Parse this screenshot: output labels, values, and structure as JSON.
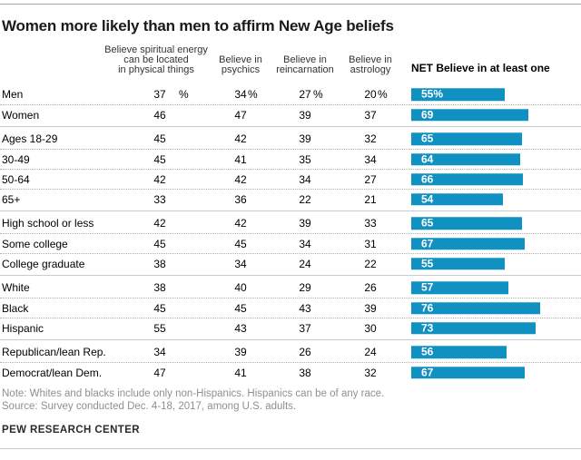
{
  "title": "Women more likely than men to affirm New Age beliefs",
  "columns": [
    {
      "label": "Believe spiritual energy can be located in physical things",
      "lines": [
        "Believe spiritual energy",
        "can be located",
        "in physical things"
      ]
    },
    {
      "label": "Believe in psychics",
      "lines": [
        "Believe in",
        "psychics"
      ]
    },
    {
      "label": "Believe in reincarnation",
      "lines": [
        "Believe in",
        "reincarnation"
      ]
    },
    {
      "label": "Believe in astrology",
      "lines": [
        "Believe in",
        "astrology"
      ]
    },
    {
      "label": "NET Believe in at least one"
    }
  ],
  "groups": [
    {
      "rows": [
        {
          "label": "Men",
          "values": [
            "37",
            "34",
            "27",
            "20"
          ],
          "suffix": "%",
          "net": 55,
          "net_label": "55%"
        },
        {
          "label": "Women",
          "values": [
            "46",
            "47",
            "39",
            "37"
          ],
          "net": 69,
          "net_label": "69"
        }
      ]
    },
    {
      "rows": [
        {
          "label": "Ages 18-29",
          "values": [
            "45",
            "42",
            "39",
            "32"
          ],
          "net": 65,
          "net_label": "65"
        },
        {
          "label": "30-49",
          "values": [
            "45",
            "41",
            "35",
            "34"
          ],
          "net": 64,
          "net_label": "64"
        },
        {
          "label": "50-64",
          "values": [
            "42",
            "42",
            "34",
            "27"
          ],
          "net": 66,
          "net_label": "66"
        },
        {
          "label": "65+",
          "values": [
            "33",
            "36",
            "22",
            "21"
          ],
          "net": 54,
          "net_label": "54"
        }
      ]
    },
    {
      "rows": [
        {
          "label": "High school or less",
          "values": [
            "42",
            "42",
            "39",
            "33"
          ],
          "net": 65,
          "net_label": "65"
        },
        {
          "label": "Some college",
          "values": [
            "45",
            "45",
            "34",
            "31"
          ],
          "net": 67,
          "net_label": "67"
        },
        {
          "label": "College graduate",
          "values": [
            "38",
            "34",
            "24",
            "22"
          ],
          "net": 55,
          "net_label": "55"
        }
      ]
    },
    {
      "rows": [
        {
          "label": "White",
          "values": [
            "38",
            "40",
            "29",
            "26"
          ],
          "net": 57,
          "net_label": "57"
        },
        {
          "label": "Black",
          "values": [
            "45",
            "45",
            "43",
            "39"
          ],
          "net": 76,
          "net_label": "76"
        },
        {
          "label": "Hispanic",
          "values": [
            "55",
            "43",
            "37",
            "30"
          ],
          "net": 73,
          "net_label": "73"
        }
      ]
    },
    {
      "rows": [
        {
          "label": "Republican/lean Rep.",
          "values": [
            "34",
            "39",
            "26",
            "24"
          ],
          "net": 56,
          "net_label": "56"
        },
        {
          "label": "Democrat/lean Dem.",
          "values": [
            "47",
            "41",
            "38",
            "32"
          ],
          "net": 67,
          "net_label": "67"
        }
      ]
    }
  ],
  "notes": {
    "note": "Note: Whites and blacks include only non-Hispanics. Hispanics can be of any race.",
    "source": "Source: Survey conducted Dec. 4-18, 2017, among U.S. adults."
  },
  "footer": "PEW RESEARCH CENTER",
  "colors": {
    "bar": "#1190c2",
    "bar_label": "#ffffff"
  },
  "chart_data": {
    "type": "bar",
    "orientation": "horizontal",
    "title": "Women more likely than men to affirm New Age beliefs",
    "categories": [
      "Men",
      "Women",
      "Ages 18-29",
      "30-49",
      "50-64",
      "65+",
      "High school or less",
      "Some college",
      "College graduate",
      "White",
      "Black",
      "Hispanic",
      "Republican/lean Rep.",
      "Democrat/lean Dem."
    ],
    "series": [
      {
        "name": "Believe spiritual energy can be located in physical things",
        "values": [
          37,
          46,
          45,
          45,
          42,
          33,
          42,
          45,
          38,
          38,
          45,
          55,
          34,
          47
        ]
      },
      {
        "name": "Believe in psychics",
        "values": [
          34,
          47,
          42,
          41,
          42,
          36,
          42,
          45,
          34,
          40,
          45,
          43,
          39,
          41
        ]
      },
      {
        "name": "Believe in reincarnation",
        "values": [
          27,
          39,
          39,
          35,
          34,
          22,
          39,
          34,
          24,
          29,
          43,
          37,
          26,
          38
        ]
      },
      {
        "name": "Believe in astrology",
        "values": [
          20,
          37,
          32,
          34,
          27,
          21,
          33,
          31,
          22,
          26,
          39,
          30,
          24,
          32
        ]
      },
      {
        "name": "NET Believe in at least one",
        "values": [
          55,
          69,
          65,
          64,
          66,
          54,
          65,
          67,
          55,
          57,
          76,
          73,
          56,
          67
        ]
      }
    ],
    "bar_series": "NET Believe in at least one",
    "unit": "%",
    "xlim": [
      0,
      100
    ],
    "grid": false,
    "legend_position": "column headers",
    "note": "Note: Whites and blacks include only non-Hispanics. Hispanics can be of any race.",
    "source": "Source: Survey conducted Dec. 4-18, 2017, among U.S. adults.",
    "footer": "PEW RESEARCH CENTER"
  }
}
